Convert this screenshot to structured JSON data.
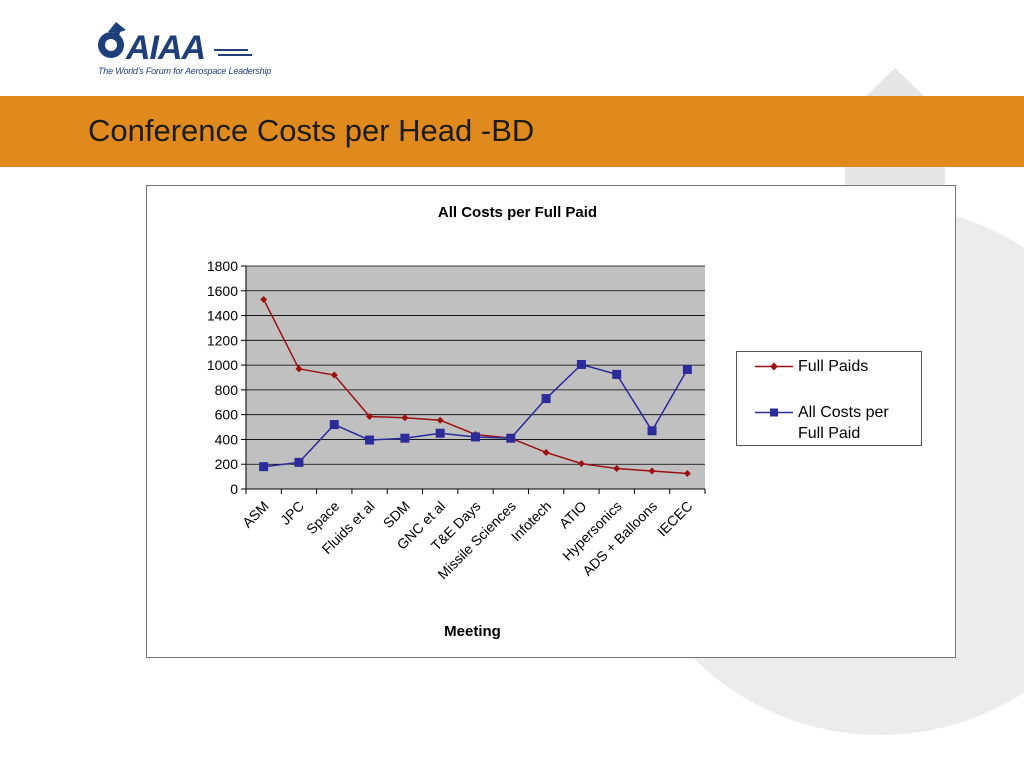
{
  "logo": {
    "brand": "AIAA",
    "tagline": "The World's Forum for Aerospace Leadership"
  },
  "slide": {
    "title": "Conference Costs per Head -BD"
  },
  "colors": {
    "title_bar": "#e08a1e",
    "full_paids": "#9b1111",
    "all_costs": "#2b2b9a",
    "plot_area": "#c0c0c0",
    "brand_blue": "#1f3f7a"
  },
  "chart_data": {
    "type": "line",
    "title": "All Costs per Full Paid",
    "xlabel": "Meeting",
    "ylabel": "",
    "ylim": [
      0,
      1800
    ],
    "yticks": [
      0,
      200,
      400,
      600,
      800,
      1000,
      1200,
      1400,
      1600,
      1800
    ],
    "grid": true,
    "legend_position": "right",
    "categories": [
      "ASM",
      "JPC",
      "Space",
      "Fluids et al",
      "SDM",
      "GNC et al",
      "T&E Days",
      "Missile Sciences",
      "Infotech",
      "ATIO",
      "Hypersonics",
      "ADS + Balloons",
      "IECEC"
    ],
    "series": [
      {
        "name": "Full Paids",
        "marker": "diamond",
        "color": "#9b1111",
        "values": [
          1530,
          970,
          920,
          585,
          575,
          555,
          440,
          410,
          295,
          205,
          165,
          145,
          125
        ]
      },
      {
        "name": "All Costs per Full Paid",
        "marker": "square",
        "color": "#2b2b9a",
        "values": [
          180,
          215,
          520,
          395,
          410,
          450,
          420,
          410,
          730,
          1005,
          925,
          470,
          965
        ]
      }
    ]
  }
}
